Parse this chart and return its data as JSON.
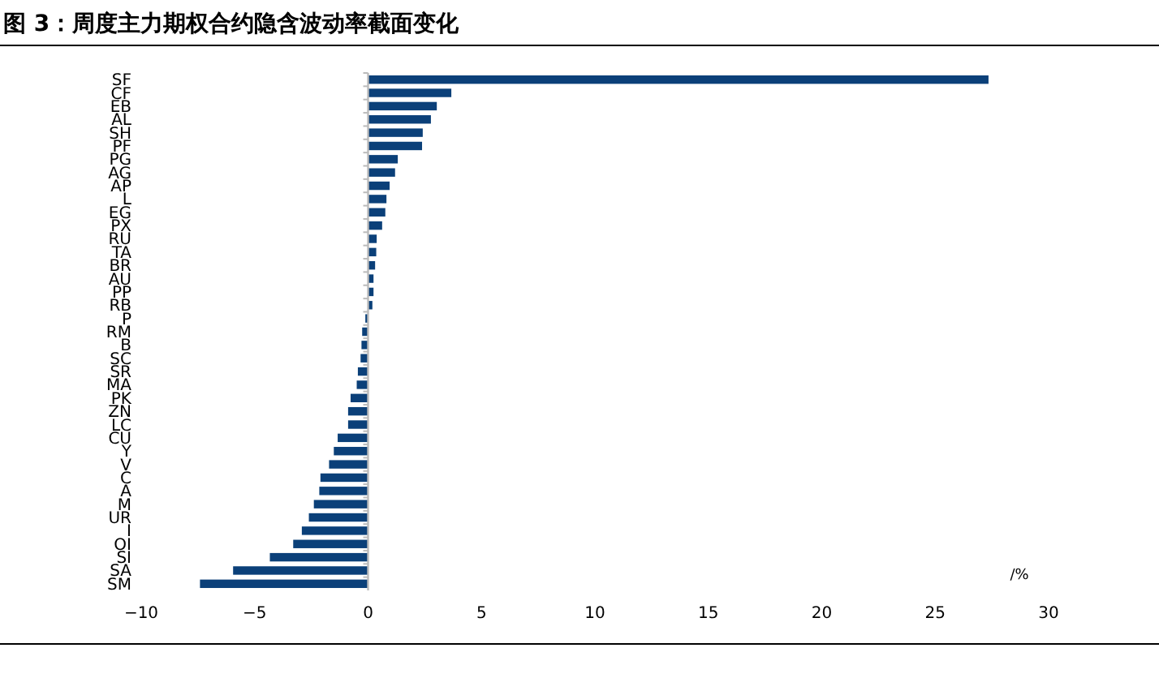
{
  "chart_data": {
    "type": "bar",
    "orientation": "horizontal",
    "title": "图 3：周度主力期权合约隐含波动率截面变化",
    "xlabel": "/%",
    "categories": [
      "SF",
      "CF",
      "EB",
      "AL",
      "SH",
      "PF",
      "PG",
      "AG",
      "AP",
      "L",
      "EG",
      "PX",
      "RU",
      "TA",
      "BR",
      "AU",
      "PP",
      "RB",
      "P",
      "RM",
      "B",
      "SC",
      "SR",
      "MA",
      "PK",
      "ZN",
      "LC",
      "CU",
      "Y",
      "V",
      "C",
      "A",
      "M",
      "UR",
      "I",
      "OI",
      "SI",
      "SA",
      "SM"
    ],
    "values": [
      27.35,
      3.67,
      3.03,
      2.77,
      2.41,
      2.38,
      1.31,
      1.19,
      0.95,
      0.81,
      0.76,
      0.62,
      0.38,
      0.36,
      0.31,
      0.24,
      0.24,
      0.19,
      -0.12,
      -0.26,
      -0.29,
      -0.33,
      -0.45,
      -0.5,
      -0.77,
      -0.88,
      -0.88,
      -1.34,
      -1.51,
      -1.72,
      -2.1,
      -2.15,
      -2.39,
      -2.61,
      -2.92,
      -3.3,
      -4.33,
      -5.95,
      -7.41
    ],
    "color": "#0b4079",
    "xlim": [
      -10,
      30
    ],
    "xticks": [
      {
        "value": -10,
        "label": "−10"
      },
      {
        "value": -5,
        "label": "−5"
      },
      0,
      5,
      10,
      15,
      20,
      25,
      30
    ]
  }
}
